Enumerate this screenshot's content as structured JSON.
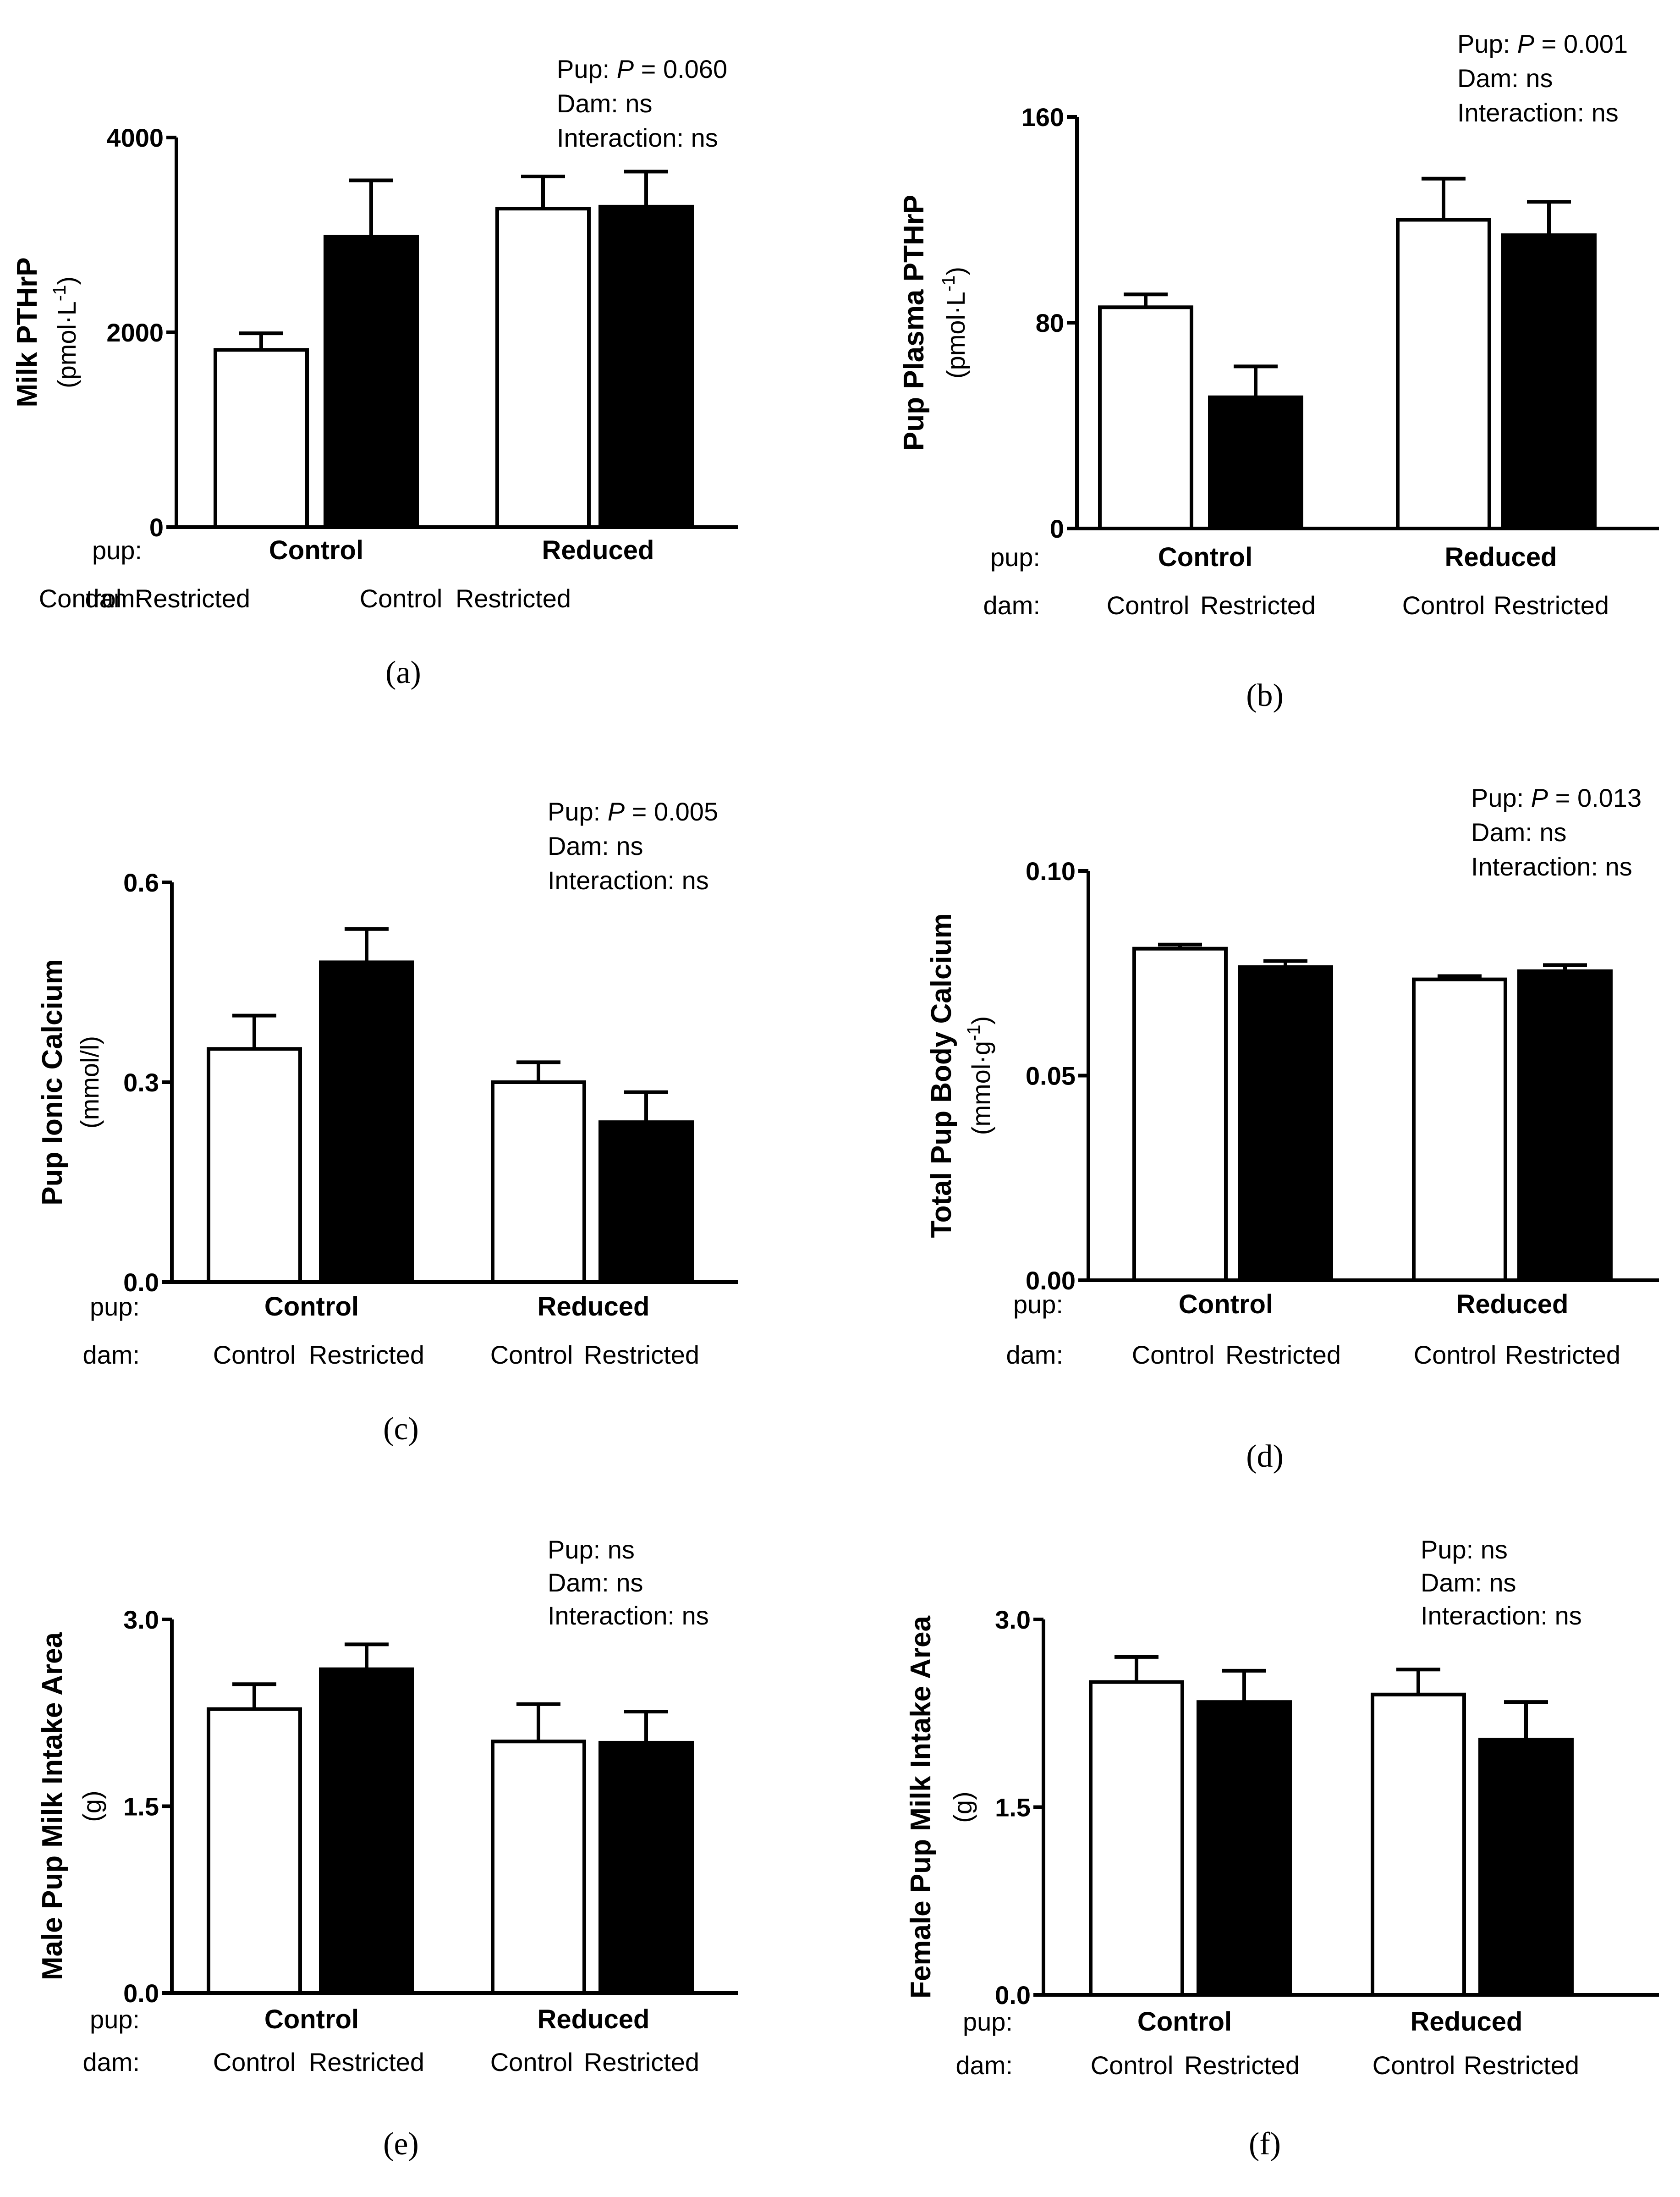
{
  "legend": {
    "pup_row": "pup:",
    "dam_row": "dam:",
    "dam_control": "Control",
    "dam_restricted": "Restricted"
  },
  "chart_data": [
    {
      "panel": "(a)",
      "panel_letter": "a",
      "type": "bar",
      "ylabel": "Milk PTHrP",
      "yunit": "(pmol·L",
      "yunit_sup": "-1",
      "yunit_close": ")",
      "ylim": [
        0,
        4000
      ],
      "yticks": [
        0,
        2000,
        4000
      ],
      "yticklabels": [
        "0",
        "2000",
        "4000"
      ],
      "groups": [
        "Control",
        "Reduced"
      ],
      "series": [
        {
          "name": "Control",
          "values": [
            1820,
            3270
          ],
          "errors": [
            170,
            330
          ]
        },
        {
          "name": "Restricted",
          "values": [
            2980,
            3290
          ],
          "errors": [
            580,
            360
          ]
        }
      ],
      "stats": {
        "pup": "Pup: ",
        "pup_p": "P",
        "pup_val": " = 0.060",
        "dam": "Dam: ns",
        "interaction": "Interaction: ns"
      }
    },
    {
      "panel": "(b)",
      "panel_letter": "b",
      "type": "bar",
      "ylabel": "Pup Plasma PTHrP",
      "yunit": "(pmol·L",
      "yunit_sup": "-1",
      "yunit_close": ")",
      "ylim": [
        0,
        160
      ],
      "yticks": [
        0,
        80,
        160
      ],
      "yticklabels": [
        "0",
        "80",
        "160"
      ],
      "groups": [
        "Control",
        "Reduced"
      ],
      "series": [
        {
          "name": "Control",
          "values": [
            86,
            120
          ],
          "errors": [
            5,
            16
          ]
        },
        {
          "name": "Restricted",
          "values": [
            51,
            114
          ],
          "errors": [
            12,
            13
          ]
        }
      ],
      "stats": {
        "pup": "Pup: ",
        "pup_p": "P",
        "pup_val": " = 0.001",
        "dam": "Dam: ns",
        "interaction": "Interaction: ns"
      }
    },
    {
      "panel": "(c)",
      "panel_letter": "c",
      "type": "bar",
      "ylabel": "Pup Ionic Calcium",
      "yunit": "(mmol/l)",
      "yunit_sup": "",
      "yunit_close": "",
      "ylim": [
        0,
        0.6
      ],
      "yticks": [
        0,
        0.3,
        0.6
      ],
      "yticklabels": [
        "0.0",
        "0.3",
        "0.6"
      ],
      "groups": [
        "Control",
        "Reduced"
      ],
      "series": [
        {
          "name": "Control",
          "values": [
            0.35,
            0.3
          ],
          "errors": [
            0.05,
            0.03
          ]
        },
        {
          "name": "Restricted",
          "values": [
            0.48,
            0.24
          ],
          "errors": [
            0.05,
            0.045
          ]
        }
      ],
      "stats": {
        "pup": "Pup: ",
        "pup_p": "P",
        "pup_val": " = 0.005",
        "dam": "Dam: ns",
        "interaction": "Interaction: ns"
      }
    },
    {
      "panel": "(d)",
      "panel_letter": "d",
      "type": "bar",
      "ylabel": "Total Pup Body Calcium",
      "yunit": "(mmol·g",
      "yunit_sup": "-1",
      "yunit_close": ")",
      "ylim": [
        0,
        0.1
      ],
      "yticks": [
        0,
        0.05,
        0.1
      ],
      "yticklabels": [
        "0.00",
        "0.05",
        "0.10"
      ],
      "groups": [
        "Control",
        "Reduced"
      ],
      "series": [
        {
          "name": "Control",
          "values": [
            0.081,
            0.0735
          ],
          "errors": [
            0.001,
            0.0008
          ]
        },
        {
          "name": "Restricted",
          "values": [
            0.0765,
            0.0755
          ],
          "errors": [
            0.0015,
            0.0015
          ]
        }
      ],
      "stats": {
        "pup": "Pup: ",
        "pup_p": "P",
        "pup_val": " = 0.013",
        "dam": "Dam: ns",
        "interaction": "Interaction: ns"
      }
    },
    {
      "panel": "(e)",
      "panel_letter": "e",
      "type": "bar",
      "ylabel": "Male Pup Milk Intake Area",
      "yunit": "(g)",
      "yunit_sup": "",
      "yunit_close": "",
      "ylim": [
        0,
        3.0
      ],
      "yticks": [
        0,
        1.5,
        3.0
      ],
      "yticklabels": [
        "0.0",
        "1.5",
        "3.0"
      ],
      "groups": [
        "Control",
        "Reduced"
      ],
      "series": [
        {
          "name": "Control",
          "values": [
            2.28,
            2.02
          ],
          "errors": [
            0.2,
            0.3
          ]
        },
        {
          "name": "Restricted",
          "values": [
            2.6,
            2.01
          ],
          "errors": [
            0.2,
            0.25
          ]
        }
      ],
      "stats": {
        "pup": "Pup: ns",
        "pup_p": "",
        "pup_val": "",
        "dam": "Dam: ns",
        "interaction": "Interaction: ns"
      }
    },
    {
      "panel": "(f)",
      "panel_letter": "f",
      "type": "bar",
      "ylabel": "Female Pup Milk Intake Area",
      "yunit": "(g)",
      "yunit_sup": "",
      "yunit_close": "",
      "ylim": [
        0,
        3.0
      ],
      "yticks": [
        0,
        1.5,
        3.0
      ],
      "yticklabels": [
        "0.0",
        "1.5",
        "3.0"
      ],
      "groups": [
        "Control",
        "Reduced"
      ],
      "series": [
        {
          "name": "Control",
          "values": [
            2.5,
            2.4
          ],
          "errors": [
            0.2,
            0.2
          ]
        },
        {
          "name": "Restricted",
          "values": [
            2.34,
            2.04
          ],
          "errors": [
            0.25,
            0.3
          ]
        }
      ],
      "stats": {
        "pup": "Pup: ns",
        "pup_p": "",
        "pup_val": "",
        "dam": "Dam: ns",
        "interaction": "Interaction: ns"
      }
    }
  ]
}
